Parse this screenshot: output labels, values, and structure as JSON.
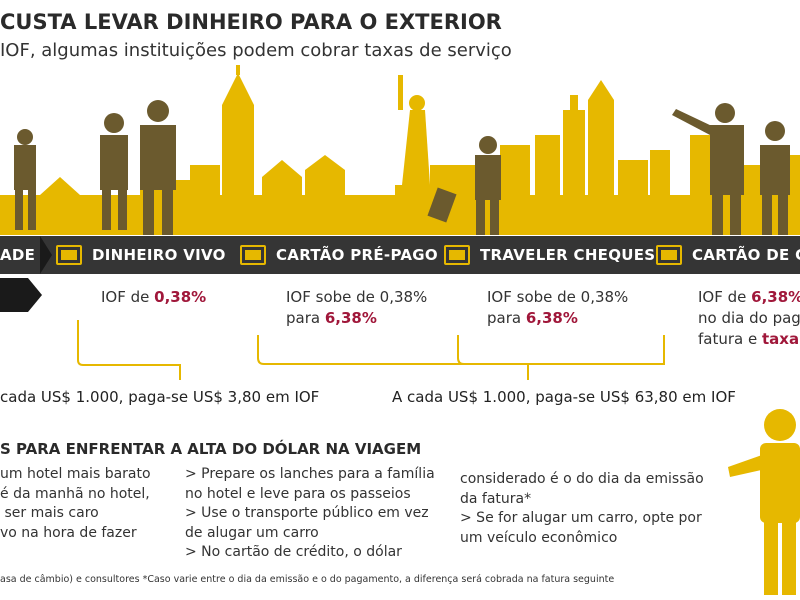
{
  "header": {
    "title": "CUSTA LEVAR DINHEIRO PARA O EXTERIOR",
    "subtitle": "IOF, algumas instituições podem cobrar taxas de serviço"
  },
  "bar": {
    "left_label": "ADE",
    "items": [
      {
        "label": "DINHEIRO VIVO",
        "icon": "cash-icon"
      },
      {
        "label": "CARTÃO PRÉ-PAGO",
        "icon": "card-icon"
      },
      {
        "label": "TRAVELER CHEQUES",
        "icon": "cheque-icon"
      },
      {
        "label": "CARTÃO DE C",
        "icon": "card-icon"
      }
    ]
  },
  "iof": {
    "cash": {
      "prefix": "IOF de ",
      "value": "0,38%"
    },
    "prepaid": {
      "line1": "IOF sobe de 0,38%",
      "line2_prefix": "para ",
      "value": "6,38%"
    },
    "cheques": {
      "line1": "IOF sobe de 0,38%",
      "line2_prefix": "para ",
      "value": "6,38%"
    },
    "credit": {
      "prefix": "IOF de ",
      "value": "6,38%",
      "line2": "no dia do paga",
      "line3_prefix": "fatura e ",
      "line3_value": "taxa",
      "line3_suffix": " p"
    }
  },
  "summary": {
    "left": "cada US$ 1.000, paga-se US$ 3,80 em IOF",
    "right": "A cada US$ 1.000, paga-se US$ 63,80 em IOF"
  },
  "tips": {
    "heading": "S PARA ENFRENTAR A ALTA DO DÓLAR NA VIAGEM",
    "col1": "um hotel mais barato\né da manhã no hotel,\n ser mais caro\nvo na hora de fazer",
    "col2": "> Prepare os lanches para a família\nno hotel e leve para os passeios\n> Use o transporte público em vez\nde alugar um carro\n> No cartão de crédito, o dólar",
    "col3": "considerado é o do dia da emissão\nda fatura*\n> Se for alugar um carro, opte por\num veículo econômico"
  },
  "footer": {
    "text": "asa de câmbio) e consultores   *Caso varie entre o dia da emissão e o do pagamento, a diferença será cobrada na fatura seguinte"
  },
  "colors": {
    "accent": "#e6b800",
    "bar": "#353535",
    "highlight": "#a0173a",
    "figure": "#6b5a2e"
  }
}
